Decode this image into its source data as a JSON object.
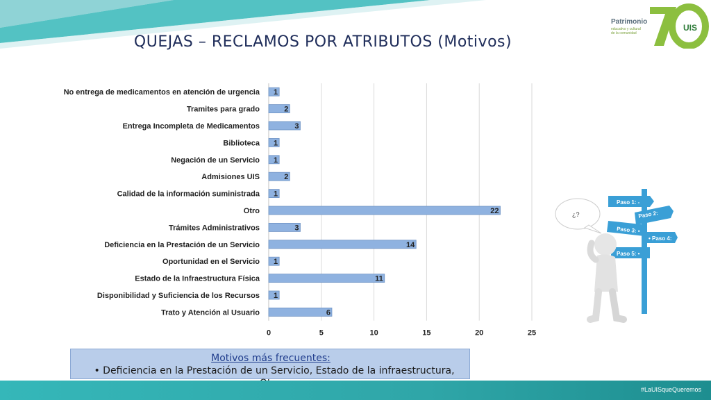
{
  "title": "QUEJAS – RECLAMOS POR ATRIBUTOS (Motivos)",
  "logo": {
    "brand": "Patrimonio",
    "tagline": "educativo y cultural de la comunidad",
    "badge": "UIS"
  },
  "chart_data": {
    "type": "bar",
    "orientation": "horizontal",
    "categories": [
      "No entrega de medicamentos en atención de urgencia",
      "Tramites para grado",
      "Entrega Incompleta de Medicamentos",
      "Biblioteca",
      "Negación de un Servicio",
      "Admisiones UIS",
      "Calidad  de la información suministrada",
      "Otro",
      "Trámites Administrativos",
      "Deficiencia en la Prestación de un Servicio",
      "Oportunidad en el Servicio",
      "Estado de la Infraestructura Física",
      "Disponibilidad y Suficiencia de los Recursos",
      "Trato y Atención al Usuario"
    ],
    "values": [
      1,
      2,
      3,
      1,
      1,
      2,
      1,
      22,
      3,
      14,
      1,
      11,
      1,
      6
    ],
    "xlim": [
      0,
      25
    ],
    "xticks": [
      "0",
      "5",
      "10",
      "15",
      "20",
      "25"
    ],
    "grid": true,
    "bar_color": "#8fb2e0"
  },
  "summary": {
    "heading": "Motivos más frecuentes:",
    "bullet": "•  Deficiencia en la Prestación de un Servicio, Estado de la infraestructura, Otros."
  },
  "signposts": [
    "Paso 1: -",
    "Paso 2:",
    "Paso 3: •",
    "•  Paso 4:",
    "Paso 5: •"
  ],
  "speech_bubble": "¿?",
  "footer": {
    "hashtag": "#LaUISqueQueremos"
  },
  "colors": {
    "teal": "#35b7b9",
    "title": "#1f2d5a",
    "green": "#7aa13a",
    "sign": "#3a9fd6"
  }
}
